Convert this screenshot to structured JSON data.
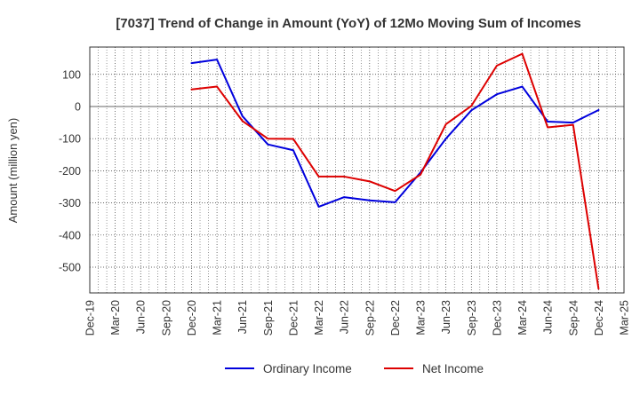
{
  "chart_data": {
    "type": "line",
    "title": "[7037]  Trend of Change in Amount (YoY) of 12Mo Moving Sum of Incomes",
    "ylabel": "Amount (million yen)",
    "xlabel": "",
    "ylim": [
      -580,
      185
    ],
    "yticks": [
      100,
      0,
      -100,
      -200,
      -300,
      -400,
      -500
    ],
    "categories": [
      "Dec-19",
      "Mar-20",
      "Jun-20",
      "Sep-20",
      "Dec-20",
      "Mar-21",
      "Jun-21",
      "Sep-21",
      "Dec-21",
      "Mar-22",
      "Jun-22",
      "Sep-22",
      "Dec-22",
      "Mar-23",
      "Jun-23",
      "Sep-23",
      "Dec-23",
      "Mar-24",
      "Jun-24",
      "Sep-24",
      "Dec-24",
      "Mar-25"
    ],
    "grid": true,
    "legend_position": "bottom",
    "series": [
      {
        "name": "Ordinary Income",
        "color": "#0000dd",
        "values": [
          null,
          null,
          null,
          null,
          135,
          146,
          -30,
          -118,
          -136,
          -312,
          -282,
          -292,
          -298,
          -205,
          -100,
          -12,
          38,
          62,
          -47,
          -50,
          -11,
          null
        ]
      },
      {
        "name": "Net Income",
        "color": "#dd0000",
        "values": [
          null,
          null,
          null,
          null,
          53,
          62,
          -45,
          -100,
          -101,
          -218,
          -218,
          -233,
          -263,
          -212,
          -55,
          2,
          127,
          164,
          -65,
          -57,
          -567,
          null
        ]
      }
    ]
  }
}
